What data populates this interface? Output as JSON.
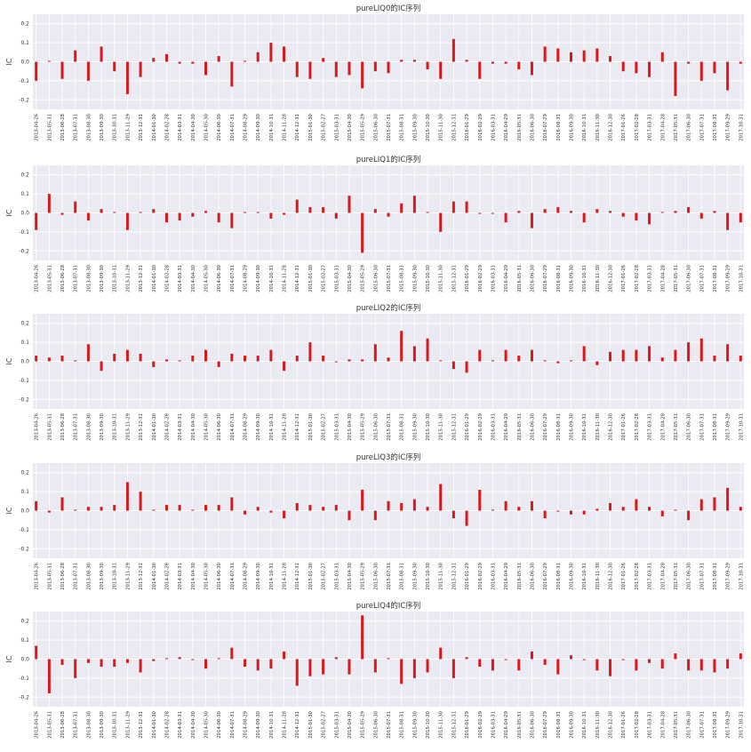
{
  "colors": {
    "bar": "#d7191c",
    "plot_bg": "#eaeaf2",
    "grid": "#ffffff",
    "text": "#333333"
  },
  "dates": [
    "2013-04-26",
    "2013-05-31",
    "2013-06-28",
    "2013-07-31",
    "2013-08-30",
    "2013-09-30",
    "2013-10-31",
    "2013-11-29",
    "2013-12-31",
    "2014-01-30",
    "2014-02-28",
    "2014-03-31",
    "2014-04-30",
    "2014-05-30",
    "2014-06-30",
    "2014-07-31",
    "2014-08-29",
    "2014-09-30",
    "2014-10-31",
    "2014-11-28",
    "2014-12-31",
    "2015-01-30",
    "2015-02-27",
    "2015-03-31",
    "2015-04-30",
    "2015-05-29",
    "2015-06-30",
    "2015-07-31",
    "2015-08-31",
    "2015-09-30",
    "2015-10-30",
    "2015-11-30",
    "2015-12-31",
    "2016-01-29",
    "2016-02-29",
    "2016-03-31",
    "2016-04-29",
    "2016-05-31",
    "2016-06-30",
    "2016-07-29",
    "2016-08-31",
    "2016-09-30",
    "2016-10-31",
    "2016-11-30",
    "2016-12-30",
    "2017-01-26",
    "2017-02-28",
    "2017-03-31",
    "2017-04-28",
    "2017-05-31",
    "2017-06-30",
    "2017-07-31",
    "2017-08-31",
    "2017-09-29",
    "2017-10-31"
  ],
  "chart_data": [
    {
      "type": "bar",
      "title": "pureLIQ0的IC序列",
      "ylabel": "IC",
      "ylim": [
        -0.25,
        0.25
      ],
      "yticks": [
        -0.2,
        -0.1,
        0.0,
        0.1,
        0.2
      ],
      "grid": true,
      "values": [
        -0.1,
        0.005,
        -0.09,
        0.06,
        -0.1,
        0.08,
        -0.05,
        -0.17,
        -0.08,
        0.02,
        0.04,
        -0.01,
        -0.01,
        -0.07,
        0.03,
        -0.13,
        0.005,
        0.05,
        0.1,
        0.08,
        -0.08,
        -0.09,
        0.02,
        -0.08,
        -0.07,
        -0.14,
        -0.05,
        -0.06,
        0.01,
        0.01,
        -0.04,
        -0.09,
        0.12,
        0.01,
        -0.09,
        -0.01,
        -0.01,
        -0.04,
        -0.07,
        0.08,
        0.07,
        0.05,
        0.06,
        0.07,
        0.03,
        -0.05,
        -0.06,
        -0.08,
        0.05,
        -0.18,
        -0.01,
        -0.1,
        -0.06,
        -0.15,
        -0.01
      ]
    },
    {
      "type": "bar",
      "title": "pureLIQ1的IC序列",
      "ylabel": "IC",
      "ylim": [
        -0.25,
        0.25
      ],
      "yticks": [
        -0.2,
        -0.1,
        0.0,
        0.1,
        0.2
      ],
      "grid": true,
      "values": [
        -0.09,
        0.1,
        -0.01,
        0.06,
        -0.04,
        0.02,
        0.005,
        -0.09,
        0.005,
        0.02,
        -0.05,
        -0.04,
        -0.02,
        0.01,
        -0.05,
        -0.08,
        0.005,
        0.005,
        -0.03,
        -0.01,
        0.07,
        0.03,
        0.03,
        -0.03,
        0.09,
        -0.21,
        0.02,
        -0.02,
        0.05,
        0.09,
        0.005,
        -0.1,
        0.06,
        0.06,
        -0.005,
        -0.005,
        -0.05,
        0.01,
        -0.08,
        0.02,
        0.03,
        0.01,
        -0.05,
        0.02,
        0.01,
        -0.02,
        -0.04,
        -0.06,
        0.005,
        0.01,
        0.03,
        -0.03,
        0.01,
        -0.09,
        -0.05
      ]
    },
    {
      "type": "bar",
      "title": "pureLIQ2的IC序列",
      "ylabel": "IC",
      "ylim": [
        -0.25,
        0.25
      ],
      "yticks": [
        -0.2,
        -0.1,
        0.0,
        0.1,
        0.2
      ],
      "grid": true,
      "values": [
        0.03,
        0.02,
        0.03,
        0.005,
        0.09,
        -0.05,
        0.04,
        0.06,
        0.04,
        -0.03,
        0.01,
        0.005,
        0.03,
        0.06,
        -0.03,
        0.04,
        0.03,
        0.03,
        0.06,
        -0.05,
        0.03,
        0.1,
        0.03,
        -0.005,
        0.01,
        0.01,
        0.09,
        0.02,
        0.16,
        0.08,
        0.12,
        0.005,
        -0.04,
        -0.06,
        0.06,
        0.005,
        0.06,
        0.03,
        0.06,
        0.005,
        -0.01,
        0.005,
        0.08,
        -0.02,
        0.05,
        0.06,
        0.06,
        0.08,
        0.02,
        0.06,
        0.1,
        0.12,
        0.03,
        0.09,
        0.03
      ]
    },
    {
      "type": "bar",
      "title": "pureLIQ3的IC序列",
      "ylabel": "IC",
      "ylim": [
        -0.25,
        0.25
      ],
      "yticks": [
        -0.2,
        -0.1,
        0.0,
        0.1,
        0.2
      ],
      "grid": true,
      "values": [
        0.05,
        -0.01,
        0.07,
        0.005,
        0.02,
        0.02,
        0.03,
        0.15,
        0.1,
        0.005,
        0.03,
        0.03,
        0.005,
        0.03,
        0.03,
        0.07,
        -0.02,
        0.02,
        -0.01,
        -0.04,
        0.04,
        0.03,
        0.02,
        0.03,
        -0.05,
        0.11,
        -0.05,
        0.05,
        0.04,
        0.06,
        0.02,
        0.14,
        -0.04,
        -0.08,
        0.11,
        0.005,
        0.05,
        0.02,
        0.05,
        -0.04,
        -0.005,
        -0.02,
        -0.02,
        0.01,
        0.04,
        0.02,
        0.06,
        0.02,
        -0.03,
        0.005,
        -0.05,
        0.06,
        0.07,
        0.12,
        0.02
      ]
    },
    {
      "type": "bar",
      "title": "pureLIQ4的IC序列",
      "ylabel": "IC",
      "ylim": [
        -0.25,
        0.25
      ],
      "yticks": [
        -0.2,
        -0.1,
        0.0,
        0.1,
        0.2
      ],
      "grid": true,
      "values": [
        0.07,
        -0.18,
        -0.03,
        -0.1,
        -0.02,
        -0.04,
        -0.04,
        -0.02,
        -0.07,
        -0.01,
        0.005,
        0.01,
        -0.005,
        -0.05,
        0.005,
        0.06,
        -0.04,
        -0.06,
        -0.05,
        0.04,
        -0.14,
        -0.09,
        -0.08,
        0.01,
        -0.08,
        0.23,
        -0.07,
        0.005,
        -0.13,
        -0.1,
        -0.07,
        0.06,
        -0.1,
        0.01,
        -0.04,
        -0.06,
        -0.005,
        -0.06,
        0.04,
        -0.03,
        -0.08,
        0.02,
        -0.005,
        -0.06,
        -0.09,
        -0.005,
        -0.06,
        -0.02,
        -0.05,
        0.03,
        -0.06,
        -0.06,
        -0.07,
        -0.05,
        0.03
      ]
    }
  ]
}
